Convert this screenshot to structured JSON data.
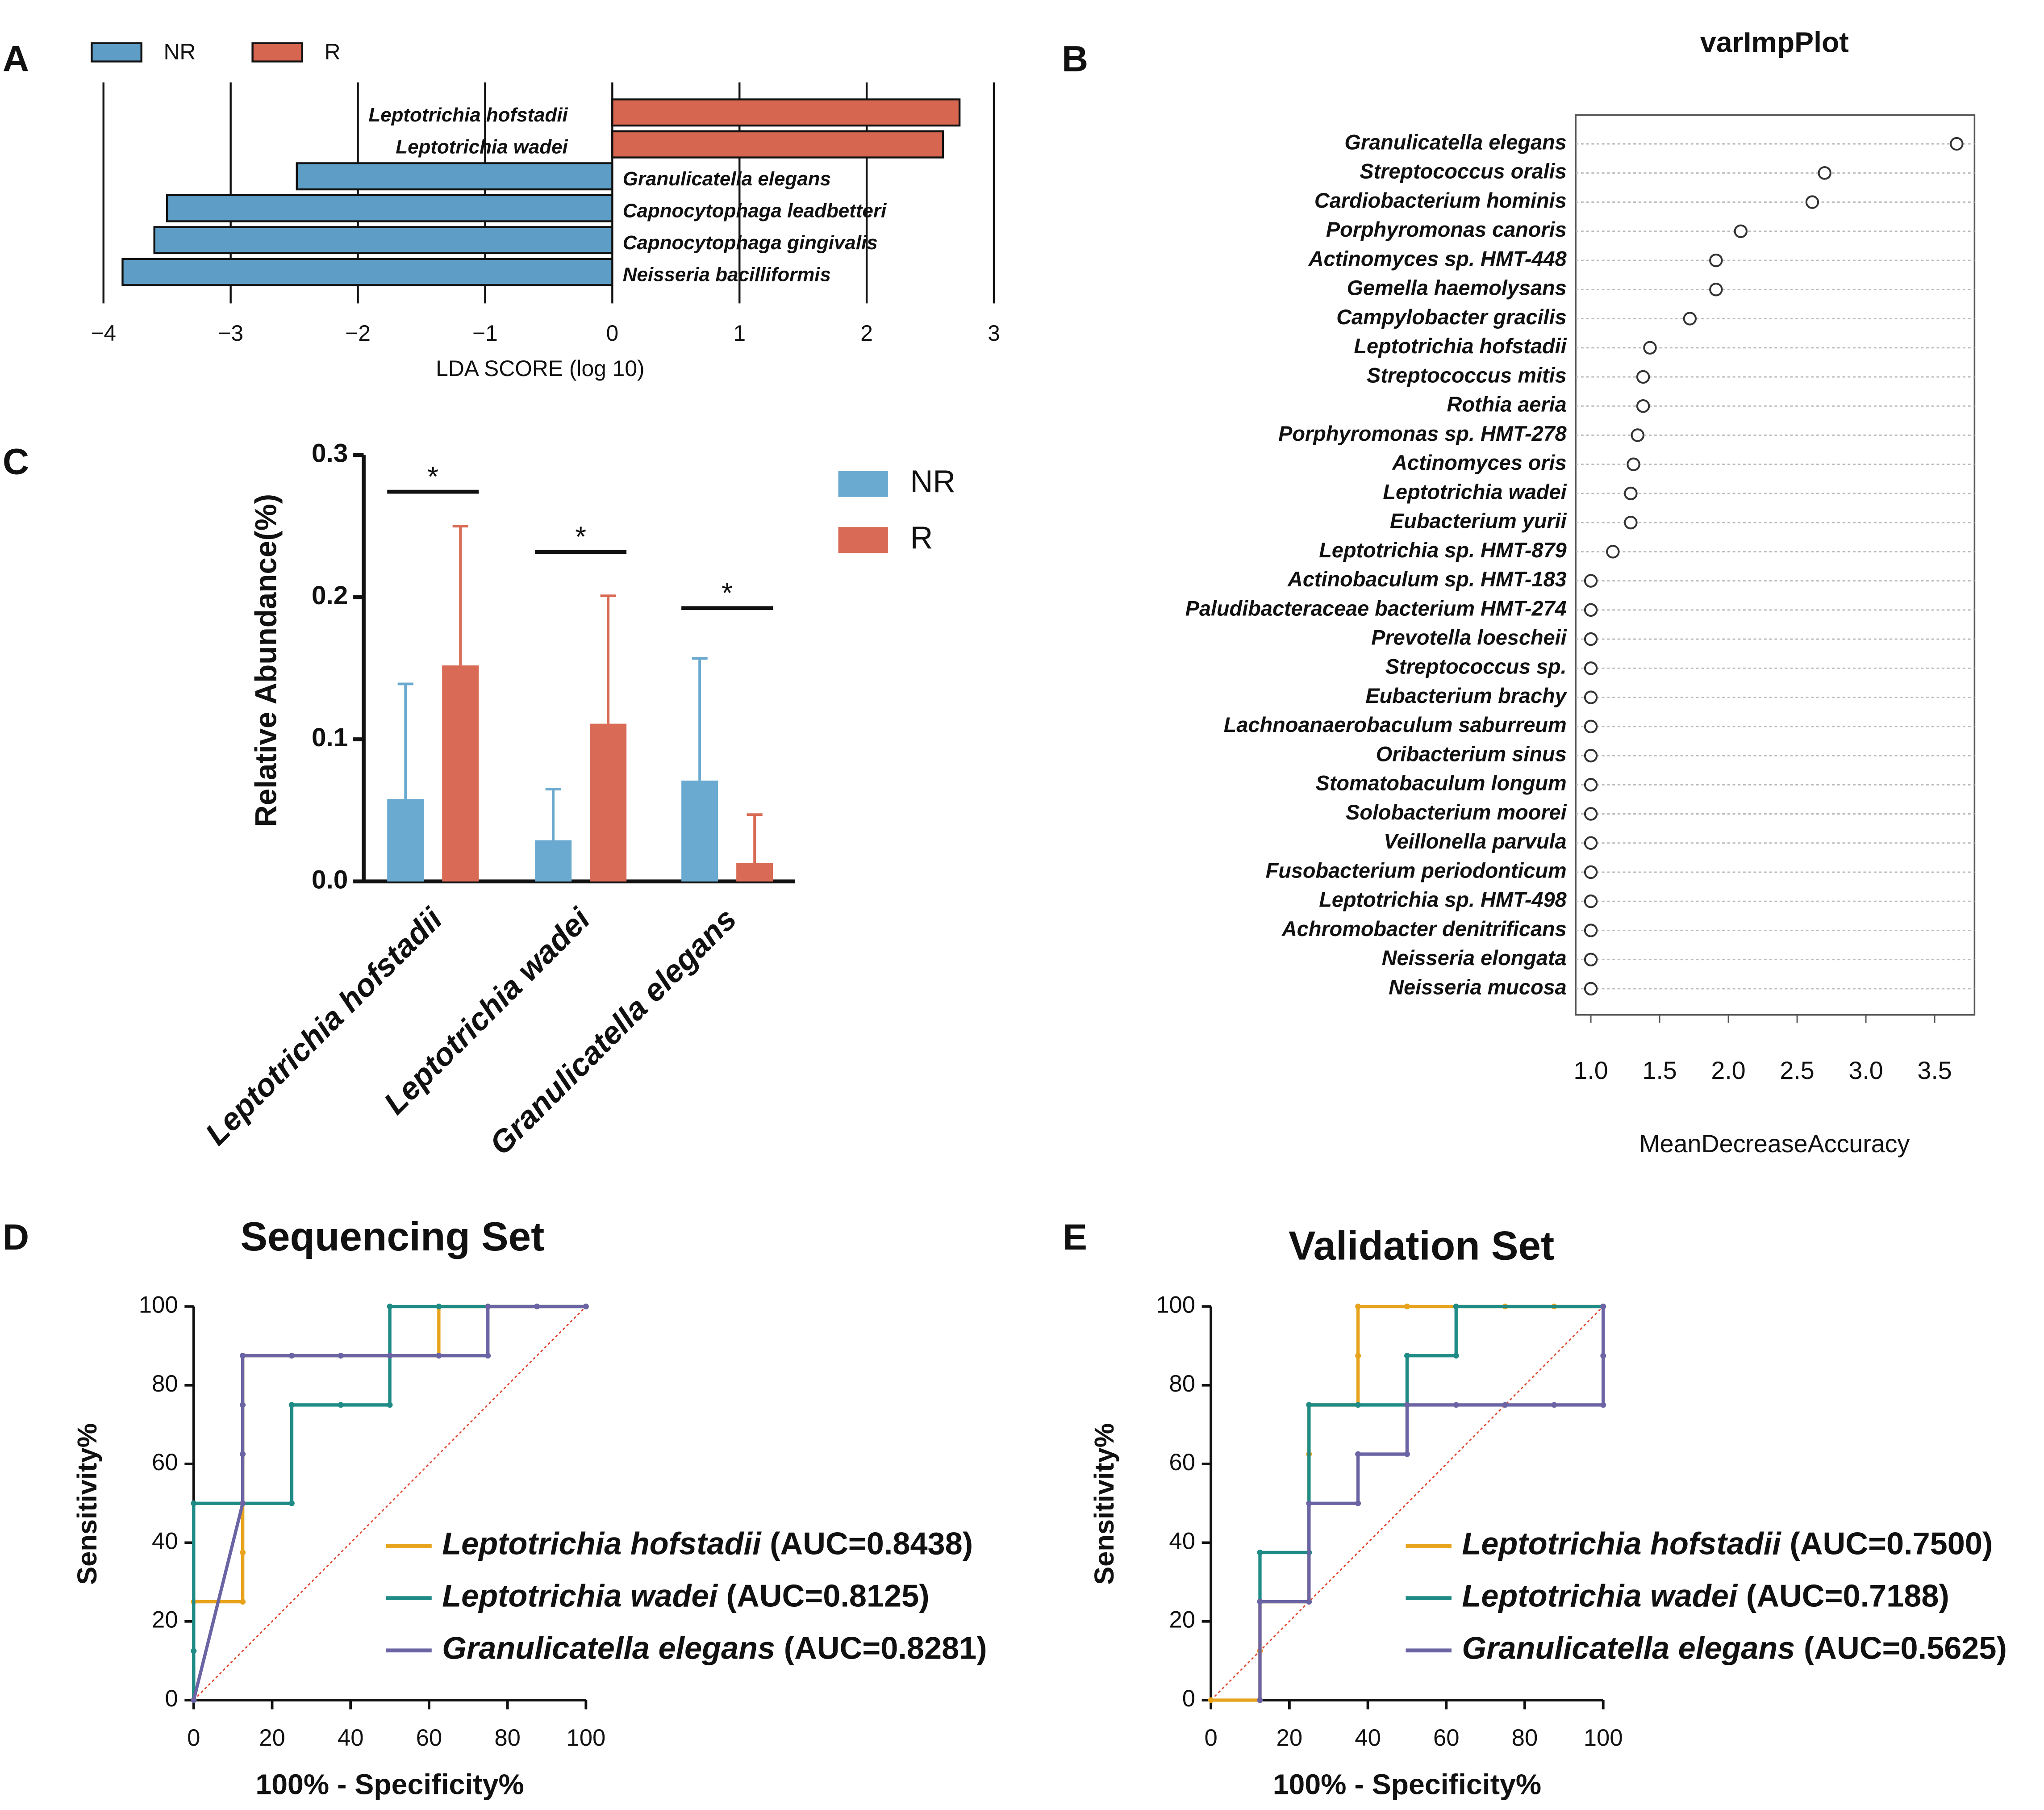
{
  "chart_data": [
    {
      "type": "lda",
      "panel": "A",
      "xlabel": "LDA SCORE (log 10)",
      "categories": [
        "Leptotrichia hofstadii",
        "Leptotrichia wadei",
        "Granulicatella elegans",
        "Capnocytophaga leadbetteri",
        "Capnocytophaga gingivalis",
        "Neisseria bacilliformis"
      ],
      "series": [
        {
          "name": "NR",
          "color": "#5e9ec6",
          "values": [
            null,
            null,
            -2.48,
            -3.5,
            -3.6,
            -3.85
          ]
        },
        {
          "name": "R",
          "color": "#d6664f",
          "values": [
            2.73,
            2.6,
            null,
            null,
            null,
            null
          ]
        }
      ],
      "xlim": [
        -4,
        3
      ],
      "xticks": [
        {
          "value": -4,
          "label": "−4"
        },
        {
          "value": -3,
          "label": "−3"
        },
        {
          "value": -2,
          "label": "−2"
        },
        {
          "value": -1,
          "label": "−1"
        },
        0,
        1,
        2,
        3
      ],
      "grid": true
    },
    {
      "type": "dot",
      "panel": "B",
      "title": "varImpPlot",
      "xlabel": "MeanDecreaseAccuracy",
      "categories": [
        "Granulicatella elegans",
        "Streptococcus oralis",
        "Cardiobacterium hominis",
        "Porphyromonas canoris",
        "Actinomyces sp. HMT-448",
        "Gemella haemolysans",
        "Campylobacter gracilis",
        "Leptotrichia hofstadii",
        "Streptococcus mitis",
        "Rothia aeria",
        "Porphyromonas sp. HMT-278",
        "Actinomyces oris",
        "Leptotrichia wadei",
        "Eubacterium yurii",
        "Leptotrichia sp. HMT-879",
        "Actinobaculum sp. HMT-183",
        "Paludibacteraceae bacterium HMT-274",
        "Prevotella loescheii",
        "Streptococcus sp.",
        "Eubacterium brachy",
        "Lachnoanaerobaculum saburreum",
        "Oribacterium sinus",
        "Stomatobaculum longum",
        "Solobacterium moorei",
        "Veillonella parvula",
        "Fusobacterium periodonticum",
        "Leptotrichia sp. HMT-498",
        "Achromobacter denitrificans",
        "Neisseria elongata",
        "Neisseria mucosa"
      ],
      "values": [
        3.66,
        2.7,
        2.61,
        2.09,
        1.91,
        1.91,
        1.72,
        1.43,
        1.38,
        1.38,
        1.34,
        1.31,
        1.29,
        1.29,
        1.16,
        1,
        1,
        1,
        1,
        1,
        1,
        1,
        1,
        1,
        1,
        1,
        1,
        1,
        1,
        1
      ],
      "color": "#333333",
      "xlim": [
        0.89,
        3.79
      ],
      "xticks": [
        {
          "value": 1,
          "label": "1.0"
        },
        1.5,
        {
          "value": 2,
          "label": "2.0"
        },
        2.5,
        {
          "value": 3,
          "label": "3.0"
        },
        3.5
      ],
      "grid": true
    },
    {
      "type": "bar",
      "panel": "C",
      "ylabel": "Relative Abundance(%)",
      "categories": [
        "Leptotrichia hofstadii",
        "Leptotrichia wadei",
        "Granulicatella elegans"
      ],
      "series": [
        {
          "name": "NR",
          "color": "#6aaad0",
          "values": [
            0.058,
            0.029,
            0.071
          ],
          "errors": [
            0.081,
            0.036,
            0.086
          ]
        },
        {
          "name": "R",
          "color": "#d96a55",
          "values": [
            0.152,
            0.111,
            0.013
          ],
          "errors": [
            0.098,
            0.09,
            0.034
          ]
        }
      ],
      "annotations": [
        "*",
        "*",
        "*"
      ],
      "ylim": [
        0,
        0.3
      ],
      "yticks": [
        {
          "value": 0,
          "label": "0.0"
        },
        0.1,
        0.2,
        0.3
      ]
    },
    {
      "type": "line",
      "panel": "D",
      "title": "Sequencing Set",
      "xlabel": "100% - Specificity%",
      "ylabel": "Sensitivity%",
      "series": [
        {
          "name": "Leptotrichia hofstadii",
          "label": "(AUC=0.8438)",
          "color": "#e8a31c",
          "x": [
            0,
            0,
            12.5,
            12.5,
            12.5,
            12.5,
            12.5,
            12.5,
            25,
            37.5,
            50,
            62.5,
            62.5,
            75,
            87.5,
            100
          ],
          "values": [
            0,
            25,
            25,
            37.5,
            50,
            62.5,
            75,
            87.5,
            87.5,
            87.5,
            87.5,
            87.5,
            100,
            100,
            100,
            100
          ]
        },
        {
          "name": "Leptotrichia wadei",
          "label": "(AUC=0.8125)",
          "color": "#1f8b86",
          "x": [
            0,
            0,
            0,
            12.5,
            25,
            25,
            37.5,
            50,
            50,
            62.5,
            75,
            87.5,
            100
          ],
          "values": [
            0,
            12.5,
            50,
            50,
            50,
            75,
            75,
            75,
            100,
            100,
            100,
            100,
            100
          ]
        },
        {
          "name": "Granulicatella elegans",
          "label": "(AUC=0.8281)",
          "color": "#6b64a4",
          "x": [
            0,
            12.5,
            12.5,
            12.5,
            12.5,
            25,
            37.5,
            50,
            62.5,
            75,
            75,
            87.5,
            100
          ],
          "values": [
            0,
            50,
            62.5,
            75,
            87.5,
            87.5,
            87.5,
            87.5,
            87.5,
            87.5,
            100,
            100,
            100
          ]
        }
      ],
      "xlim": [
        0,
        100
      ],
      "ylim": [
        0,
        100
      ],
      "xticks": [
        0,
        20,
        40,
        60,
        80,
        100
      ],
      "yticks": [
        0,
        20,
        40,
        60,
        80,
        100
      ]
    },
    {
      "type": "line",
      "panel": "E",
      "title": "Validation Set",
      "xlabel": "100% - Specificity%",
      "ylabel": "Sensitivity%",
      "series": [
        {
          "name": "Leptotrichia hofstadii",
          "label": "(AUC=0.7500)",
          "color": "#e8a31c",
          "x": [
            0,
            12.5,
            12.5,
            12.5,
            25,
            25,
            25,
            37.5,
            37.5,
            37.5,
            50,
            62.5,
            75,
            87.5,
            100
          ],
          "values": [
            0,
            0,
            12.5,
            25,
            25,
            62.5,
            75,
            75,
            87.5,
            100,
            100,
            100,
            100,
            100,
            100
          ]
        },
        {
          "name": "Leptotrichia wadei",
          "label": "(AUC=0.7188)",
          "color": "#1f8b86",
          "x": [
            12.5,
            12.5,
            25,
            25,
            37.5,
            50,
            50,
            62.5,
            62.5,
            100
          ],
          "values": [
            25,
            37.5,
            37.5,
            75,
            75,
            75,
            87.5,
            87.5,
            100,
            100
          ]
        },
        {
          "name": "Granulicatella elegans",
          "label": "(AUC=0.5625)",
          "color": "#6b64a4",
          "x": [
            12.5,
            12.5,
            25,
            25,
            37.5,
            37.5,
            50,
            50,
            62.5,
            75,
            87.5,
            100,
            100,
            100
          ],
          "values": [
            0,
            25,
            25,
            50,
            50,
            62.5,
            62.5,
            75,
            75,
            75,
            75,
            75,
            87.5,
            100
          ]
        }
      ],
      "xlim": [
        0,
        100
      ],
      "ylim": [
        0,
        100
      ],
      "xticks": [
        0,
        20,
        40,
        60,
        80,
        100
      ],
      "yticks": [
        0,
        20,
        40,
        60,
        80,
        100
      ]
    }
  ]
}
